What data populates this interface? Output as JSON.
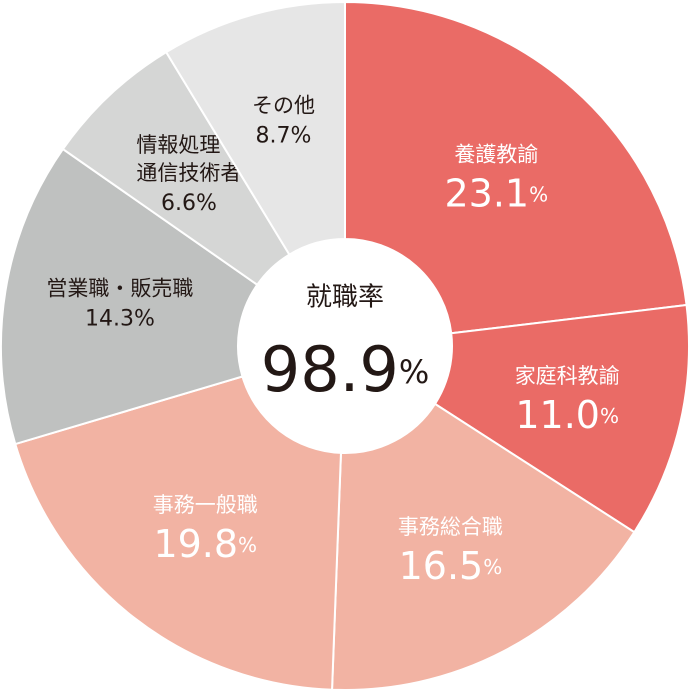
{
  "chart_data": {
    "type": "donut",
    "categories": [
      "養護教諭",
      "家庭科教諭",
      "事務総合職",
      "事務一般職",
      "営業職・販売職",
      [
        "情報処理・",
        "通信技術者"
      ],
      "その他"
    ],
    "values": [
      23.1,
      11.0,
      16.5,
      19.8,
      14.3,
      6.6,
      8.7
    ],
    "value_labels": [
      "23.1",
      "11.0",
      "16.5",
      "19.8",
      "14.3",
      "6.6",
      "8.7"
    ],
    "unit": "%",
    "colors": [
      "#ea6b66",
      "#ea6b66",
      "#f2b3a3",
      "#f2b3a3",
      "#bfc1c0",
      "#d5d6d5",
      "#e6e6e6"
    ],
    "label_colors": [
      "#ffffff",
      "#ffffff",
      "#ffffff",
      "#ffffff",
      "#231815",
      "#231815",
      "#231815"
    ],
    "center_label": "就職率",
    "center_value": 98.9
  }
}
